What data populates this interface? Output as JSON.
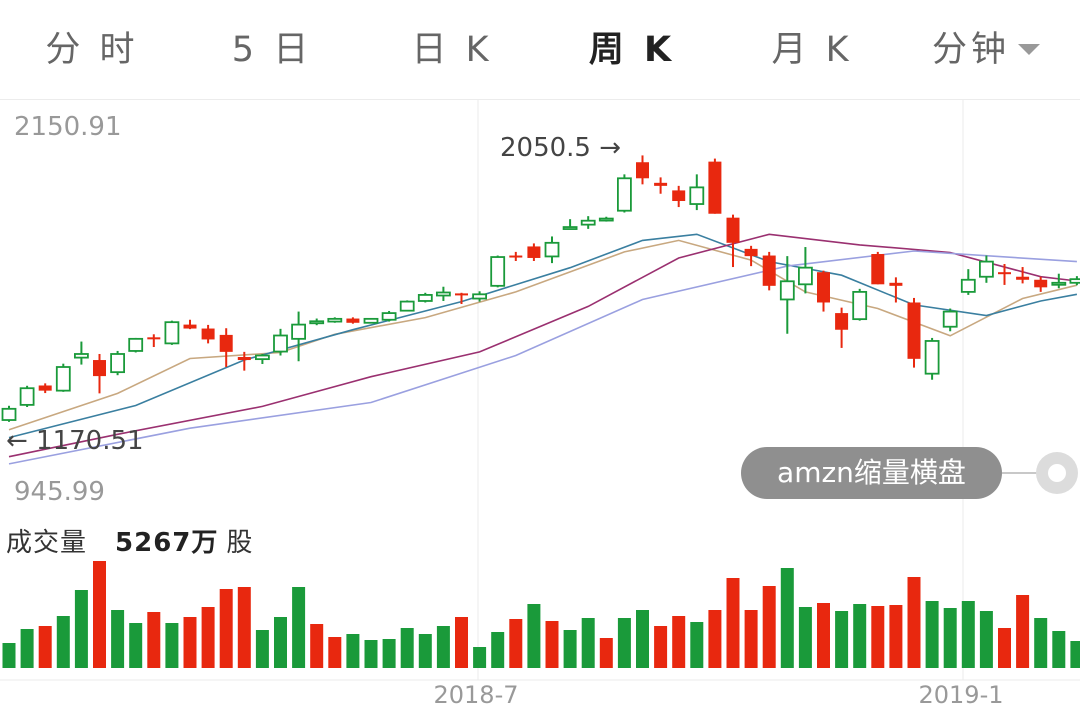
{
  "tabs": [
    {
      "label": "分 时",
      "active": false
    },
    {
      "label": "5 日",
      "active": false
    },
    {
      "label": "日 K",
      "active": false
    },
    {
      "label": "周 K",
      "active": true
    },
    {
      "label": "月 K",
      "active": false
    },
    {
      "label": "分钟",
      "active": false
    }
  ],
  "badge": {
    "label": "amzn缩量横盘"
  },
  "volume": {
    "label": "成交量",
    "value": "5267万",
    "unit": "股"
  },
  "colors": {
    "up": "#1a9a3a",
    "down": "#e8280f",
    "ma5": "#c8a880",
    "ma10": "#3a7fa0",
    "ma20": "#9a3070",
    "ma30": "#9aa0e0",
    "grid": "#ebebeb"
  },
  "chart_data": {
    "type": "candlestick",
    "ylim": [
      945.99,
      2150.91
    ],
    "y_axis_labels": [
      "2150.91",
      "945.99"
    ],
    "x_tick_labels": [
      "2018-7",
      "2019-1"
    ],
    "max_marker": "2050.5 →",
    "min_marker": "← 1170.51",
    "candles": [
      {
        "o": 1177,
        "c": 1214,
        "h": 1224,
        "l": 1171,
        "up": true
      },
      {
        "o": 1227,
        "c": 1282,
        "h": 1290,
        "l": 1220,
        "up": true
      },
      {
        "o": 1291,
        "c": 1274,
        "h": 1298,
        "l": 1266,
        "up": false
      },
      {
        "o": 1274,
        "c": 1352,
        "h": 1363,
        "l": 1270,
        "up": true
      },
      {
        "o": 1383,
        "c": 1395,
        "h": 1436,
        "l": 1360,
        "up": true
      },
      {
        "o": 1375,
        "c": 1322,
        "h": 1395,
        "l": 1265,
        "up": false
      },
      {
        "o": 1335,
        "c": 1395,
        "h": 1405,
        "l": 1325,
        "up": true
      },
      {
        "o": 1405,
        "c": 1445,
        "h": 1448,
        "l": 1400,
        "up": true
      },
      {
        "o": 1450,
        "c": 1445,
        "h": 1460,
        "l": 1418,
        "up": false
      },
      {
        "o": 1430,
        "c": 1500,
        "h": 1505,
        "l": 1425,
        "up": true
      },
      {
        "o": 1492,
        "c": 1479,
        "h": 1508,
        "l": 1477,
        "up": false
      },
      {
        "o": 1479,
        "c": 1443,
        "h": 1491,
        "l": 1430,
        "up": false
      },
      {
        "o": 1458,
        "c": 1402,
        "h": 1480,
        "l": 1352,
        "up": false
      },
      {
        "o": 1385,
        "c": 1375,
        "h": 1402,
        "l": 1340,
        "up": false
      },
      {
        "o": 1378,
        "c": 1390,
        "h": 1395,
        "l": 1362,
        "up": true
      },
      {
        "o": 1403,
        "c": 1456,
        "h": 1478,
        "l": 1390,
        "up": true
      },
      {
        "o": 1445,
        "c": 1492,
        "h": 1535,
        "l": 1371,
        "up": true
      },
      {
        "o": 1502,
        "c": 1503,
        "h": 1512,
        "l": 1490,
        "up": true
      },
      {
        "o": 1502,
        "c": 1511,
        "h": 1516,
        "l": 1498,
        "up": true
      },
      {
        "o": 1512,
        "c": 1498,
        "h": 1516,
        "l": 1495,
        "up": false
      },
      {
        "o": 1498,
        "c": 1511,
        "h": 1512,
        "l": 1498,
        "up": true
      },
      {
        "o": 1508,
        "c": 1530,
        "h": 1537,
        "l": 1502,
        "up": true
      },
      {
        "o": 1538,
        "c": 1568,
        "h": 1572,
        "l": 1538,
        "up": true
      },
      {
        "o": 1570,
        "c": 1590,
        "h": 1597,
        "l": 1565,
        "up": true
      },
      {
        "o": 1588,
        "c": 1598,
        "h": 1617,
        "l": 1570,
        "up": true
      },
      {
        "o": 1595,
        "c": 1592,
        "h": 1597,
        "l": 1560,
        "up": false
      },
      {
        "o": 1578,
        "c": 1592,
        "h": 1602,
        "l": 1568,
        "up": true
      },
      {
        "o": 1620,
        "c": 1715,
        "h": 1720,
        "l": 1615,
        "up": true
      },
      {
        "o": 1720,
        "c": 1720,
        "h": 1732,
        "l": 1702,
        "up": false
      },
      {
        "o": 1750,
        "c": 1712,
        "h": 1760,
        "l": 1702,
        "up": false
      },
      {
        "o": 1717,
        "c": 1762,
        "h": 1783,
        "l": 1695,
        "up": true
      },
      {
        "o": 1810,
        "c": 1814,
        "h": 1840,
        "l": 1810,
        "up": true
      },
      {
        "o": 1822,
        "c": 1835,
        "h": 1850,
        "l": 1808,
        "up": true
      },
      {
        "o": 1842,
        "c": 1842,
        "h": 1848,
        "l": 1832,
        "up": true
      },
      {
        "o": 1868,
        "c": 1975,
        "h": 1988,
        "l": 1862,
        "up": true
      },
      {
        "o": 2028,
        "c": 1975,
        "h": 2050.5,
        "l": 1955,
        "up": false
      },
      {
        "o": 1960,
        "c": 1950,
        "h": 1978,
        "l": 1924,
        "up": false
      },
      {
        "o": 1935,
        "c": 1900,
        "h": 1950,
        "l": 1880,
        "up": false
      },
      {
        "o": 1890,
        "c": 1945,
        "h": 1988,
        "l": 1870,
        "up": true
      },
      {
        "o": 2030,
        "c": 1858,
        "h": 2040,
        "l": 1858,
        "up": false
      },
      {
        "o": 1845,
        "c": 1762,
        "h": 1855,
        "l": 1682,
        "up": false
      },
      {
        "o": 1742,
        "c": 1718,
        "h": 1752,
        "l": 1685,
        "up": false
      },
      {
        "o": 1720,
        "c": 1620,
        "h": 1732,
        "l": 1605,
        "up": false
      },
      {
        "o": 1575,
        "c": 1635,
        "h": 1718,
        "l": 1462,
        "up": true
      },
      {
        "o": 1625,
        "c": 1680,
        "h": 1748,
        "l": 1595,
        "up": true
      },
      {
        "o": 1665,
        "c": 1565,
        "h": 1670,
        "l": 1535,
        "up": false
      },
      {
        "o": 1530,
        "c": 1475,
        "h": 1548,
        "l": 1415,
        "up": false
      },
      {
        "o": 1510,
        "c": 1600,
        "h": 1610,
        "l": 1505,
        "up": true
      },
      {
        "o": 1725,
        "c": 1625,
        "h": 1732,
        "l": 1625,
        "up": false
      },
      {
        "o": 1630,
        "c": 1620,
        "h": 1648,
        "l": 1565,
        "up": false
      },
      {
        "o": 1565,
        "c": 1379,
        "h": 1580,
        "l": 1350,
        "up": false
      },
      {
        "o": 1330,
        "c": 1438,
        "h": 1448,
        "l": 1310,
        "up": true
      },
      {
        "o": 1485,
        "c": 1535,
        "h": 1545,
        "l": 1470,
        "up": true
      },
      {
        "o": 1600,
        "c": 1640,
        "h": 1675,
        "l": 1590,
        "up": true
      },
      {
        "o": 1650,
        "c": 1700,
        "h": 1720,
        "l": 1630,
        "up": true
      },
      {
        "o": 1665,
        "c": 1660,
        "h": 1692,
        "l": 1623,
        "up": false
      },
      {
        "o": 1650,
        "c": 1640,
        "h": 1682,
        "l": 1628,
        "up": false
      },
      {
        "o": 1640,
        "c": 1615,
        "h": 1650,
        "l": 1600,
        "up": false
      },
      {
        "o": 1625,
        "c": 1630,
        "h": 1660,
        "l": 1612,
        "up": true
      },
      {
        "o": 1630,
        "c": 1642,
        "h": 1652,
        "l": 1622,
        "up": true
      }
    ],
    "ma_series": [
      {
        "key": "ma5",
        "points": [
          [
            0,
            1145
          ],
          [
            6,
            1265
          ],
          [
            10,
            1380
          ],
          [
            15,
            1400
          ],
          [
            18,
            1460
          ],
          [
            23,
            1515
          ],
          [
            28,
            1600
          ],
          [
            34,
            1732
          ],
          [
            37,
            1770
          ],
          [
            41,
            1705
          ],
          [
            44,
            1600
          ],
          [
            48,
            1545
          ],
          [
            52,
            1455
          ],
          [
            56,
            1578
          ],
          [
            59,
            1622
          ]
        ]
      },
      {
        "key": "ma10",
        "points": [
          [
            0,
            1119
          ],
          [
            7,
            1225
          ],
          [
            13,
            1375
          ],
          [
            19,
            1475
          ],
          [
            25,
            1568
          ],
          [
            31,
            1680
          ],
          [
            35,
            1770
          ],
          [
            38,
            1790
          ],
          [
            42,
            1700
          ],
          [
            46,
            1655
          ],
          [
            50,
            1557
          ],
          [
            54,
            1522
          ],
          [
            57,
            1570
          ],
          [
            59,
            1592
          ]
        ]
      },
      {
        "key": "ma20",
        "points": [
          [
            0,
            1056
          ],
          [
            6,
            1130
          ],
          [
            14,
            1222
          ],
          [
            20,
            1320
          ],
          [
            26,
            1402
          ],
          [
            32,
            1552
          ],
          [
            37,
            1712
          ],
          [
            42,
            1790
          ],
          [
            47,
            1755
          ],
          [
            52,
            1730
          ],
          [
            57,
            1650
          ],
          [
            59,
            1636
          ]
        ]
      },
      {
        "key": "ma30",
        "points": [
          [
            0,
            1032
          ],
          [
            10,
            1150
          ],
          [
            20,
            1235
          ],
          [
            28,
            1390
          ],
          [
            35,
            1575
          ],
          [
            43,
            1685
          ],
          [
            50,
            1735
          ],
          [
            59,
            1700
          ]
        ]
      }
    ],
    "volume": [
      {
        "v": 25,
        "up": true
      },
      {
        "v": 39,
        "up": true
      },
      {
        "v": 42,
        "up": false
      },
      {
        "v": 52,
        "up": true
      },
      {
        "v": 78,
        "up": true
      },
      {
        "v": 107,
        "up": false
      },
      {
        "v": 58,
        "up": true
      },
      {
        "v": 45,
        "up": true
      },
      {
        "v": 56,
        "up": false
      },
      {
        "v": 45,
        "up": true
      },
      {
        "v": 51,
        "up": false
      },
      {
        "v": 61,
        "up": false
      },
      {
        "v": 79,
        "up": false
      },
      {
        "v": 81,
        "up": false
      },
      {
        "v": 38,
        "up": true
      },
      {
        "v": 51,
        "up": true
      },
      {
        "v": 81,
        "up": true
      },
      {
        "v": 44,
        "up": false
      },
      {
        "v": 31,
        "up": false
      },
      {
        "v": 34,
        "up": true
      },
      {
        "v": 28,
        "up": true
      },
      {
        "v": 29,
        "up": true
      },
      {
        "v": 40,
        "up": true
      },
      {
        "v": 34,
        "up": true
      },
      {
        "v": 42,
        "up": true
      },
      {
        "v": 51,
        "up": false
      },
      {
        "v": 21,
        "up": true
      },
      {
        "v": 36,
        "up": true
      },
      {
        "v": 49,
        "up": false
      },
      {
        "v": 64,
        "up": true
      },
      {
        "v": 47,
        "up": false
      },
      {
        "v": 38,
        "up": true
      },
      {
        "v": 50,
        "up": true
      },
      {
        "v": 30,
        "up": false
      },
      {
        "v": 50,
        "up": true
      },
      {
        "v": 58,
        "up": true
      },
      {
        "v": 42,
        "up": false
      },
      {
        "v": 52,
        "up": false
      },
      {
        "v": 46,
        "up": true
      },
      {
        "v": 58,
        "up": false
      },
      {
        "v": 90,
        "up": false
      },
      {
        "v": 58,
        "up": false
      },
      {
        "v": 82,
        "up": false
      },
      {
        "v": 100,
        "up": true
      },
      {
        "v": 61,
        "up": true
      },
      {
        "v": 65,
        "up": false
      },
      {
        "v": 57,
        "up": true
      },
      {
        "v": 64,
        "up": true
      },
      {
        "v": 62,
        "up": false
      },
      {
        "v": 63,
        "up": false
      },
      {
        "v": 91,
        "up": false
      },
      {
        "v": 67,
        "up": true
      },
      {
        "v": 60,
        "up": true
      },
      {
        "v": 67,
        "up": true
      },
      {
        "v": 57,
        "up": true
      },
      {
        "v": 40,
        "up": false
      },
      {
        "v": 73,
        "up": false
      },
      {
        "v": 50,
        "up": true
      },
      {
        "v": 37,
        "up": true
      },
      {
        "v": 27,
        "up": true
      }
    ]
  }
}
